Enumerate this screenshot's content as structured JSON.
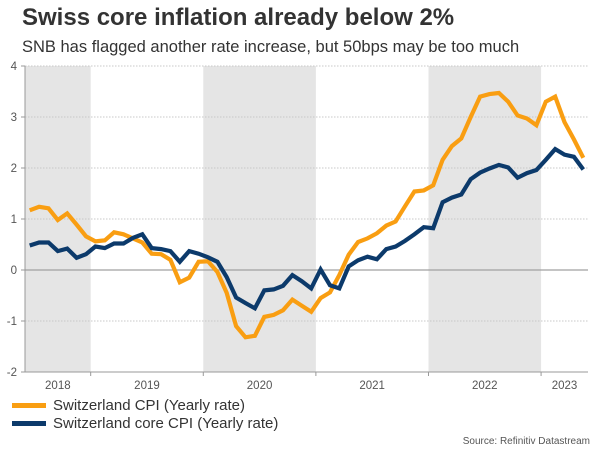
{
  "header": {
    "title": "Swiss core inflation already below 2%",
    "subtitle": "SNB has flagged another rate increase, but 50bps may be too much"
  },
  "source": "Source: Refinitiv Datastream",
  "colors": {
    "cpi": "#F99E12",
    "core_cpi": "#0C3A6B",
    "band": "#E5E5E5",
    "grid": "#C8C8C8",
    "zero_line": "#A0A0A0",
    "axis": "#999999"
  },
  "chart_data": {
    "type": "line",
    "title": "Swiss core inflation already below 2%",
    "subtitle": "SNB has flagged another rate increase, but 50bps may be too much",
    "xlabel": "",
    "ylabel": "",
    "ylim": [
      -2,
      4
    ],
    "yticks": [
      -2,
      -1,
      0,
      1,
      2,
      3,
      4
    ],
    "grid": true,
    "legend_position": "bottom-left",
    "x_start": "2018-06",
    "x_end": "2023-05",
    "frequency": "monthly",
    "x_range_months": [
      -0.5,
      59.5
    ],
    "year_labels": [
      {
        "label": "2018",
        "start_month": -5,
        "end_month": 7
      },
      {
        "label": "2019",
        "start_month": 7,
        "end_month": 19
      },
      {
        "label": "2020",
        "start_month": 19,
        "end_month": 31
      },
      {
        "label": "2021",
        "start_month": 31,
        "end_month": 43
      },
      {
        "label": "2022",
        "start_month": 43,
        "end_month": 55
      },
      {
        "label": "2023",
        "start_month": 55,
        "end_month": 60
      }
    ],
    "shaded_years": [
      "2018",
      "2020",
      "2022"
    ],
    "series": [
      {
        "name": "Switzerland CPI (Yearly rate)",
        "color_key": "cpi",
        "values": [
          1.17,
          1.24,
          1.21,
          0.98,
          1.11,
          0.89,
          0.66,
          0.56,
          0.58,
          0.74,
          0.7,
          0.62,
          0.54,
          0.32,
          0.31,
          0.2,
          -0.24,
          -0.15,
          0.16,
          0.17,
          -0.04,
          -0.45,
          -1.1,
          -1.32,
          -1.29,
          -0.92,
          -0.88,
          -0.79,
          -0.58,
          -0.7,
          -0.82,
          -0.55,
          -0.44,
          -0.1,
          0.3,
          0.55,
          0.62,
          0.72,
          0.87,
          0.95,
          1.25,
          1.54,
          1.56,
          1.66,
          2.16,
          2.43,
          2.58,
          3.0,
          3.4,
          3.45,
          3.47,
          3.3,
          3.03,
          2.97,
          2.84,
          3.3,
          3.4,
          2.9,
          2.56,
          2.2
        ]
      },
      {
        "name": "Switzerland core CPI (Yearly rate)",
        "color_key": "core_cpi",
        "values": [
          0.48,
          0.54,
          0.54,
          0.37,
          0.42,
          0.24,
          0.31,
          0.46,
          0.43,
          0.52,
          0.52,
          0.63,
          0.7,
          0.43,
          0.41,
          0.37,
          0.16,
          0.37,
          0.32,
          0.25,
          0.16,
          -0.14,
          -0.54,
          -0.65,
          -0.75,
          -0.4,
          -0.38,
          -0.31,
          -0.1,
          -0.22,
          -0.36,
          0.01,
          -0.3,
          -0.36,
          0.07,
          0.19,
          0.26,
          0.21,
          0.41,
          0.46,
          0.57,
          0.7,
          0.84,
          0.82,
          1.33,
          1.42,
          1.48,
          1.78,
          1.91,
          1.99,
          2.06,
          2.01,
          1.81,
          1.9,
          1.96,
          2.16,
          2.37,
          2.26,
          2.22,
          1.97
        ]
      }
    ]
  }
}
